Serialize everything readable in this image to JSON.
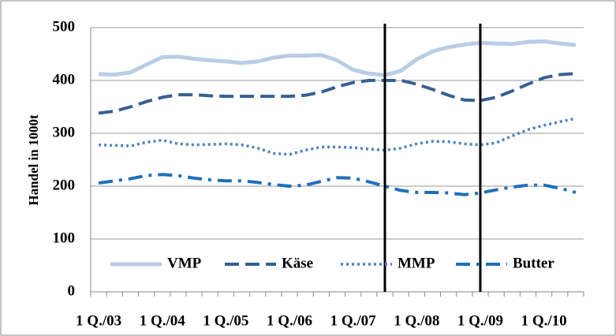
{
  "chart_data": {
    "type": "line",
    "ylabel": "Handel in 1000t",
    "categories": [
      "1 Q./03",
      null,
      null,
      null,
      "1 Q./04",
      null,
      null,
      null,
      "1 Q./05",
      null,
      null,
      null,
      "1 Q./06",
      null,
      null,
      null,
      "1 Q./07",
      null,
      null,
      null,
      "1 Q./08",
      null,
      null,
      null,
      "1 Q./09",
      null,
      null,
      null,
      "1 Q./10",
      null,
      null
    ],
    "series": [
      {
        "name": "VMP",
        "color": "#b9cde5",
        "style": "solid",
        "values": [
          412,
          411,
          415,
          430,
          444,
          445,
          441,
          438,
          436,
          433,
          436,
          443,
          447,
          447,
          448,
          438,
          420,
          413,
          410,
          418,
          440,
          455,
          463,
          468,
          471,
          470,
          469,
          473,
          474,
          470,
          467
        ]
      },
      {
        "name": "Käse",
        "color": "#376092",
        "style": "dash",
        "values": [
          338,
          342,
          350,
          360,
          368,
          373,
          373,
          371,
          370,
          370,
          370,
          370,
          370,
          372,
          378,
          388,
          396,
          400,
          400,
          400,
          393,
          383,
          372,
          363,
          362,
          368,
          380,
          393,
          405,
          411,
          413
        ]
      },
      {
        "name": "MMP",
        "color": "#4f81bd",
        "style": "dot",
        "values": [
          278,
          277,
          276,
          283,
          287,
          280,
          278,
          279,
          280,
          278,
          272,
          262,
          260,
          268,
          274,
          274,
          273,
          270,
          268,
          272,
          280,
          285,
          284,
          280,
          278,
          282,
          295,
          307,
          315,
          322,
          328
        ]
      },
      {
        "name": "Butter",
        "color": "#1f6fb8",
        "style": "dashdot",
        "values": [
          206,
          210,
          214,
          220,
          222,
          220,
          215,
          212,
          210,
          210,
          207,
          203,
          200,
          202,
          209,
          216,
          215,
          208,
          200,
          192,
          188,
          188,
          187,
          184,
          187,
          193,
          198,
          202,
          202,
          196,
          188
        ]
      }
    ],
    "ylim": [
      0,
      500
    ],
    "yticks": [
      0,
      100,
      200,
      300,
      400,
      500
    ],
    "grid": true,
    "vlines": [
      18,
      24
    ],
    "legend": "bottom"
  }
}
